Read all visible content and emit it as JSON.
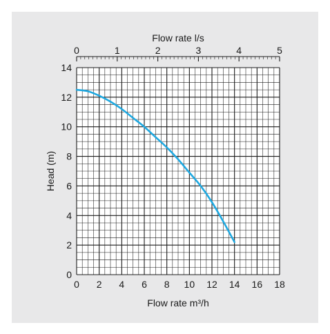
{
  "chart_data": {
    "type": "line",
    "x_label_bottom": "Flow rate m³/h",
    "x_label_top": "Flow rate l/s",
    "y_label": "Head (m)",
    "x_range": [
      0,
      18
    ],
    "x_top_range": [
      0,
      5
    ],
    "y_range": [
      0,
      14
    ],
    "x_ticks": [
      "0",
      "2",
      "4",
      "6",
      "8",
      "10",
      "12",
      "14",
      "16",
      "18"
    ],
    "x_top_ticks": [
      "0",
      "1",
      "2",
      "3",
      "4",
      "5"
    ],
    "y_ticks": [
      "0",
      "2",
      "4",
      "6",
      "8",
      "10",
      "12",
      "14"
    ],
    "grid": true,
    "series": [
      {
        "color": "#1ea8e0",
        "points": [
          [
            0,
            12.5
          ],
          [
            1,
            12.4
          ],
          [
            2,
            12.1
          ],
          [
            3,
            11.7
          ],
          [
            4,
            11.2
          ],
          [
            5,
            10.6
          ],
          [
            6,
            10.0
          ],
          [
            7,
            9.3
          ],
          [
            8,
            8.6
          ],
          [
            9,
            7.8
          ],
          [
            10,
            6.9
          ],
          [
            11,
            6.0
          ],
          [
            12,
            4.9
          ],
          [
            13,
            3.6
          ],
          [
            14,
            2.2
          ]
        ]
      }
    ],
    "colors": {
      "curve": "#1ea8e0",
      "grid": "#1a1a1a",
      "background": "#e8e8e9",
      "plot_area": "#ffffff"
    }
  }
}
